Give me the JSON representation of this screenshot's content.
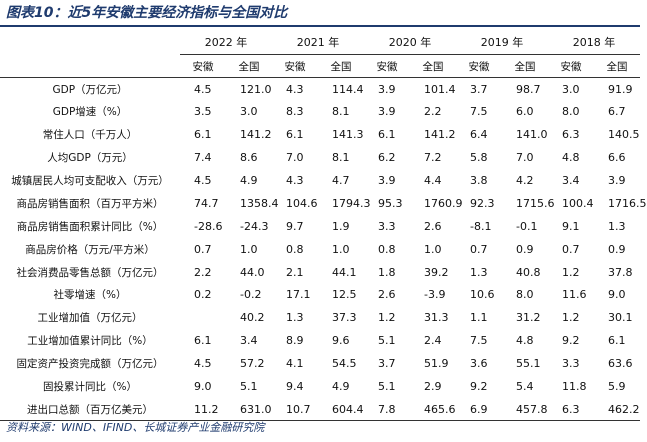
{
  "title": "图表10：近5年安徽主要经济指标与全国对比",
  "source": "资料来源：WIND、IFIND、长城证券产业金融研究院",
  "years": [
    "2022 年",
    "2021 年",
    "2020 年",
    "2019 年",
    "2018 年"
  ],
  "region_labels": {
    "anhui": "安徽",
    "national": "全国"
  },
  "rows": [
    {
      "label": "GDP（万亿元）",
      "values": [
        "4.5",
        "121.0",
        "4.3",
        "114.4",
        "3.9",
        "101.4",
        "3.7",
        "98.7",
        "3.0",
        "91.9"
      ]
    },
    {
      "label": "GDP增速（%）",
      "values": [
        "3.5",
        "3.0",
        "8.3",
        "8.1",
        "3.9",
        "2.2",
        "7.5",
        "6.0",
        "8.0",
        "6.7"
      ]
    },
    {
      "label": "常住人口（千万人）",
      "values": [
        "6.1",
        "141.2",
        "6.1",
        "141.3",
        "6.1",
        "141.2",
        "6.4",
        "141.0",
        "6.3",
        "140.5"
      ]
    },
    {
      "label": "人均GDP（万元）",
      "values": [
        "7.4",
        "8.6",
        "7.0",
        "8.1",
        "6.2",
        "7.2",
        "5.8",
        "7.0",
        "4.8",
        "6.6"
      ]
    },
    {
      "label": "城镇居民人均可支配收入（万元）",
      "values": [
        "4.5",
        "4.9",
        "4.3",
        "4.7",
        "3.9",
        "4.4",
        "3.8",
        "4.2",
        "3.4",
        "3.9"
      ]
    },
    {
      "label": "商品房销售面积（百万平方米）",
      "values": [
        "74.7",
        "1358.4",
        "104.6",
        "1794.3",
        "95.3",
        "1760.9",
        "92.3",
        "1715.6",
        "100.4",
        "1716.5"
      ]
    },
    {
      "label": "商品房销售面积累计同比（%）",
      "values": [
        "-28.6",
        "-24.3",
        "9.7",
        "1.9",
        "3.3",
        "2.6",
        "-8.1",
        "-0.1",
        "9.1",
        "1.3"
      ]
    },
    {
      "label": "商品房价格（万元/平方米）",
      "values": [
        "0.7",
        "1.0",
        "0.8",
        "1.0",
        "0.8",
        "1.0",
        "0.7",
        "0.9",
        "0.7",
        "0.9"
      ]
    },
    {
      "label": "社会消费品零售总额（万亿元）",
      "values": [
        "2.2",
        "44.0",
        "2.1",
        "44.1",
        "1.8",
        "39.2",
        "1.3",
        "40.8",
        "1.2",
        "37.8"
      ]
    },
    {
      "label": "社零增速（%）",
      "values": [
        "0.2",
        "-0.2",
        "17.1",
        "12.5",
        "2.6",
        "-3.9",
        "10.6",
        "8.0",
        "11.6",
        "9.0"
      ]
    },
    {
      "label": "工业增加值（万亿元）",
      "values": [
        "",
        "40.2",
        "1.3",
        "37.3",
        "1.2",
        "31.3",
        "1.1",
        "31.2",
        "1.2",
        "30.1"
      ]
    },
    {
      "label": "工业增加值累计同比（%）",
      "values": [
        "6.1",
        "3.4",
        "8.9",
        "9.6",
        "5.1",
        "2.4",
        "7.5",
        "4.8",
        "9.2",
        "6.1"
      ]
    },
    {
      "label": "固定资产投资完成额（万亿元）",
      "values": [
        "4.5",
        "57.2",
        "4.1",
        "54.5",
        "3.7",
        "51.9",
        "3.6",
        "55.1",
        "3.3",
        "63.6"
      ]
    },
    {
      "label": "固投累计同比（%）",
      "values": [
        "9.0",
        "5.1",
        "9.4",
        "4.9",
        "5.1",
        "2.9",
        "9.2",
        "5.4",
        "11.8",
        "5.9"
      ]
    },
    {
      "label": "进出口总额（百万亿美元）",
      "values": [
        "11.2",
        "631.0",
        "10.7",
        "604.4",
        "7.8",
        "465.6",
        "6.9",
        "457.8",
        "6.3",
        "462.2"
      ]
    }
  ]
}
